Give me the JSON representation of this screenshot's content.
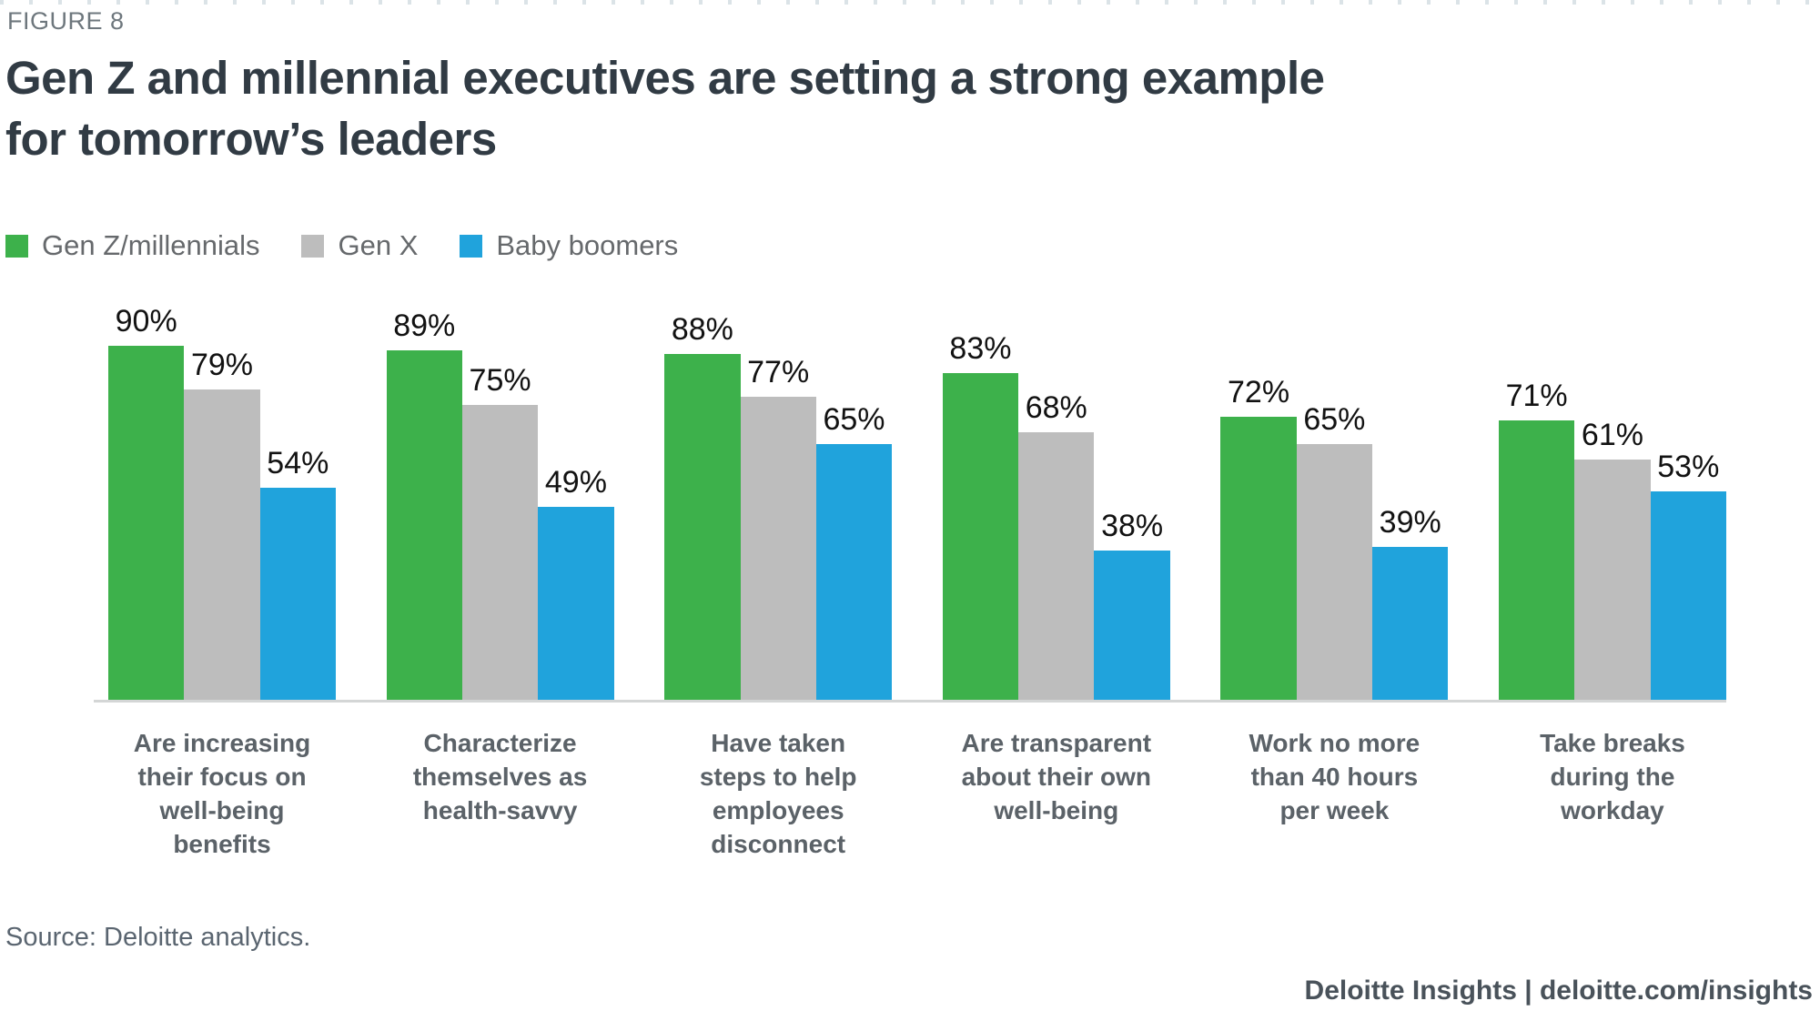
{
  "figure_label": "FIGURE 8",
  "title": "Gen Z and millennial executives are setting a strong example\nfor tomorrow’s leaders",
  "source": "Source: Deloitte analytics.",
  "footer": "Deloitte Insights | deloitte.com/insights",
  "colors": {
    "gen_z_millennials": "#3db14b",
    "gen_x": "#bdbdbd",
    "baby_boomers": "#20a3dc",
    "axis_line": "#d4d6d6",
    "title_text": "#313b44",
    "category_text": "#5b6268"
  },
  "chart_data": {
    "type": "bar",
    "title": "Gen Z and millennial executives are setting a strong example for tomorrow’s leaders",
    "categories": [
      "Are increasing\ntheir focus on\nwell-being\nbenefits",
      "Characterize\nthemselves as\nhealth-savvy",
      "Have taken\nsteps to help\nemployees\ndisconnect",
      "Are transparent\nabout their own\nwell-being",
      "Work no more\nthan 40 hours\nper week",
      "Take breaks\nduring the\nworkday"
    ],
    "series": [
      {
        "name": "Gen Z/millennials",
        "color": "#3db14b",
        "values": [
          90,
          89,
          88,
          83,
          72,
          71
        ]
      },
      {
        "name": "Gen X",
        "color": "#bdbdbd",
        "values": [
          79,
          75,
          77,
          68,
          65,
          61
        ]
      },
      {
        "name": "Baby boomers",
        "color": "#20a3dc",
        "values": [
          54,
          49,
          65,
          38,
          39,
          53
        ]
      }
    ],
    "value_suffix": "%",
    "xlabel": "",
    "ylabel": "",
    "ylim": [
      0,
      100
    ],
    "grid": false,
    "data_labels": true,
    "legend_position": "top-left"
  }
}
